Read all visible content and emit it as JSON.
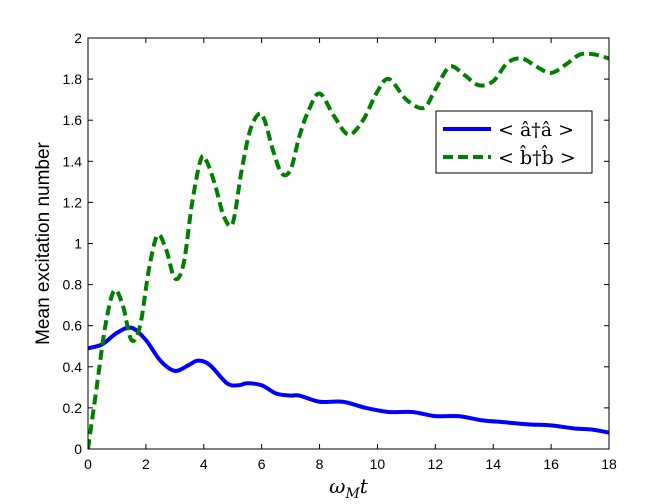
{
  "chart_data": {
    "type": "line",
    "title": "",
    "xlabel": "ωMt",
    "ylabel": "Mean excitation number",
    "xlim": [
      0,
      18
    ],
    "ylim": [
      0,
      2
    ],
    "xticks": [
      "0",
      "2",
      "4",
      "6",
      "8",
      "10",
      "12",
      "14",
      "16",
      "18"
    ],
    "yticks": [
      "0",
      "0.2",
      "0.4",
      "0.6",
      "0.8",
      "1",
      "1.2",
      "1.4",
      "1.6",
      "1.8",
      "2"
    ],
    "grid": false,
    "legend_position": "upper-right",
    "series": [
      {
        "name": "< â†â >",
        "color": "#0000ff",
        "style": "solid",
        "x": [
          0,
          0.5,
          1.0,
          1.5,
          2.0,
          2.5,
          3.0,
          3.5,
          3.8,
          4.2,
          4.8,
          5.2,
          5.5,
          6.0,
          6.5,
          7.0,
          7.3,
          8.0,
          8.8,
          9.6,
          10.4,
          11.2,
          12.0,
          12.8,
          13.6,
          14.4,
          15.2,
          16.0,
          16.8,
          17.4,
          18.0
        ],
        "y": [
          0.49,
          0.51,
          0.565,
          0.59,
          0.53,
          0.43,
          0.38,
          0.41,
          0.43,
          0.41,
          0.32,
          0.31,
          0.32,
          0.31,
          0.27,
          0.26,
          0.26,
          0.23,
          0.23,
          0.2,
          0.18,
          0.18,
          0.16,
          0.16,
          0.14,
          0.13,
          0.12,
          0.115,
          0.1,
          0.095,
          0.08
        ]
      },
      {
        "name": "< b̂†b̂ >",
        "color": "#007f00",
        "style": "dashed",
        "x": [
          0,
          0.3,
          0.6,
          0.9,
          1.2,
          1.5,
          1.8,
          2.1,
          2.4,
          2.7,
          3.0,
          3.3,
          3.6,
          3.9,
          4.1,
          4.4,
          4.7,
          5.0,
          5.3,
          5.6,
          5.9,
          6.1,
          6.4,
          6.7,
          7.0,
          7.3,
          7.6,
          8.0,
          8.5,
          9.0,
          9.5,
          10.0,
          10.4,
          11.0,
          11.6,
          12.0,
          12.5,
          13.0,
          13.5,
          14.0,
          14.5,
          15.0,
          15.5,
          16.0,
          16.5,
          17.0,
          17.5,
          18.0
        ],
        "y": [
          0.0,
          0.3,
          0.6,
          0.77,
          0.7,
          0.53,
          0.6,
          0.87,
          1.04,
          0.97,
          0.83,
          0.9,
          1.2,
          1.41,
          1.4,
          1.28,
          1.13,
          1.1,
          1.35,
          1.55,
          1.63,
          1.6,
          1.45,
          1.34,
          1.36,
          1.52,
          1.64,
          1.73,
          1.62,
          1.53,
          1.6,
          1.74,
          1.8,
          1.7,
          1.66,
          1.75,
          1.86,
          1.82,
          1.77,
          1.79,
          1.88,
          1.9,
          1.86,
          1.83,
          1.87,
          1.92,
          1.92,
          1.9
        ]
      }
    ]
  }
}
